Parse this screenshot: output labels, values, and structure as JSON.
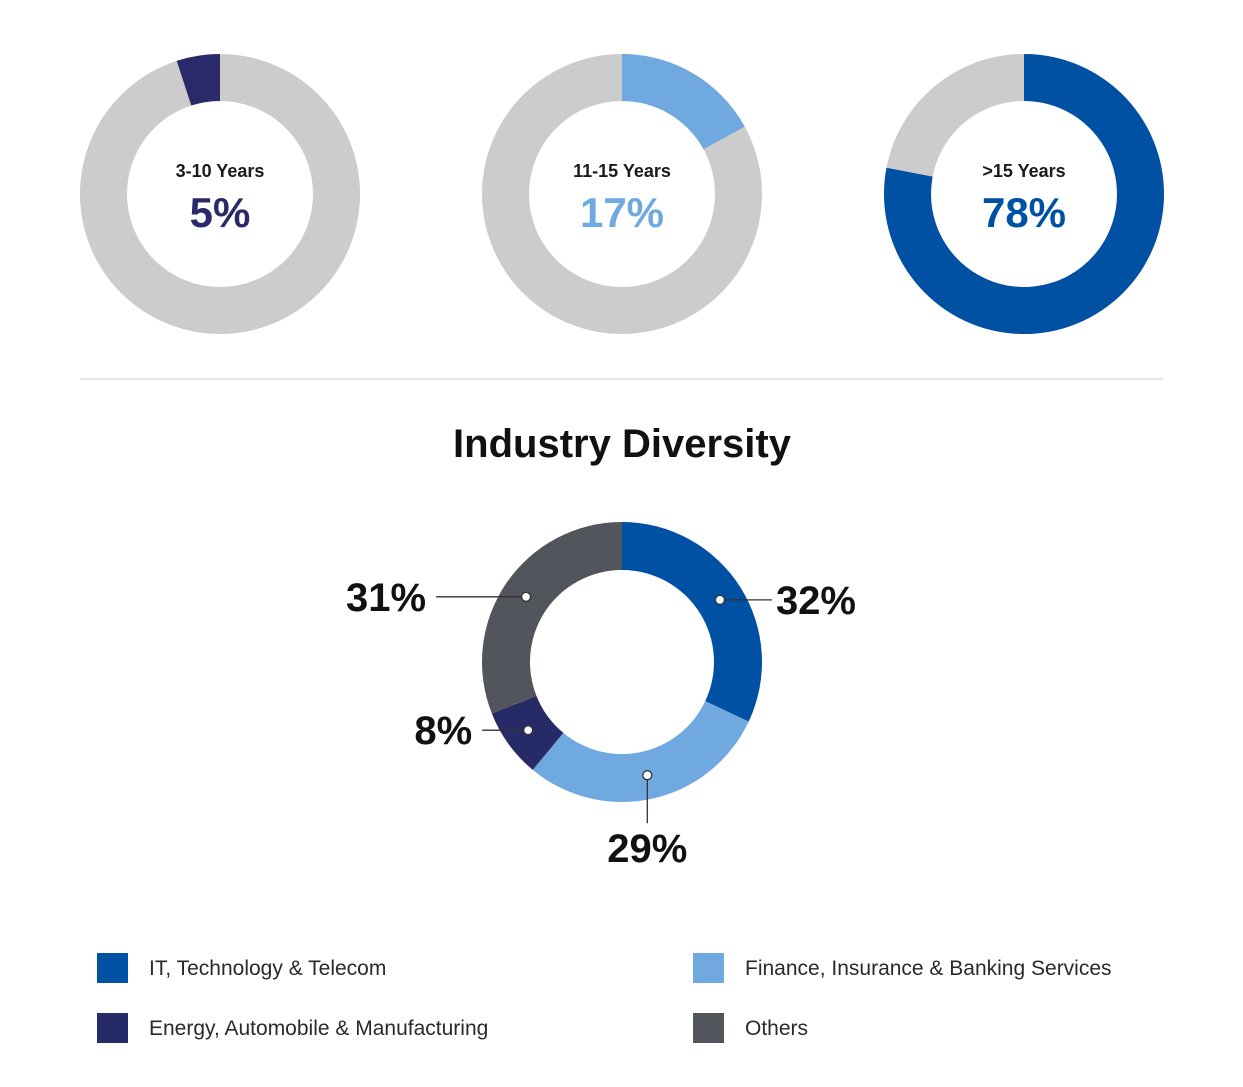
{
  "chart_data": [
    {
      "type": "pie",
      "variant": "donut-gauge",
      "label": "3-10 Years",
      "value_text": "5%",
      "value": 5,
      "color": "#2a2a6b",
      "track_color": "#cccccc"
    },
    {
      "type": "pie",
      "variant": "donut-gauge",
      "label": "11-15 Years",
      "value_text": "17%",
      "value": 17,
      "color": "#6fa9df",
      "track_color": "#cccccc"
    },
    {
      "type": "pie",
      "variant": "donut-gauge",
      "label": ">15 Years",
      "value_text": "78%",
      "value": 78,
      "color": "#0051a3",
      "track_color": "#cccccc"
    },
    {
      "type": "pie",
      "variant": "donut",
      "title": "Industry Diversity",
      "slices": [
        {
          "name": "IT, Technology & Telecom",
          "value": 32,
          "label": "32%",
          "color": "#0051a3"
        },
        {
          "name": "Finance, Insurance & Banking Services",
          "value": 29,
          "label": "29%",
          "color": "#6fa9df"
        },
        {
          "name": "Energy, Automobile & Manufacturing",
          "value": 8,
          "label": "8%",
          "color": "#262a66"
        },
        {
          "name": "Others",
          "value": 31,
          "label": "31%",
          "color": "#53555c"
        }
      ],
      "legend": [
        {
          "name": "IT, Technology & Telecom",
          "color": "#0051a3"
        },
        {
          "name": "Finance, Insurance & Banking Services",
          "color": "#6fa9df"
        },
        {
          "name": "Energy, Automobile & Manufacturing",
          "color": "#262a66"
        },
        {
          "name": "Others",
          "color": "#53555c"
        }
      ],
      "legend_position": "bottom"
    }
  ],
  "colors": {
    "divider": "#e6e6e6"
  }
}
